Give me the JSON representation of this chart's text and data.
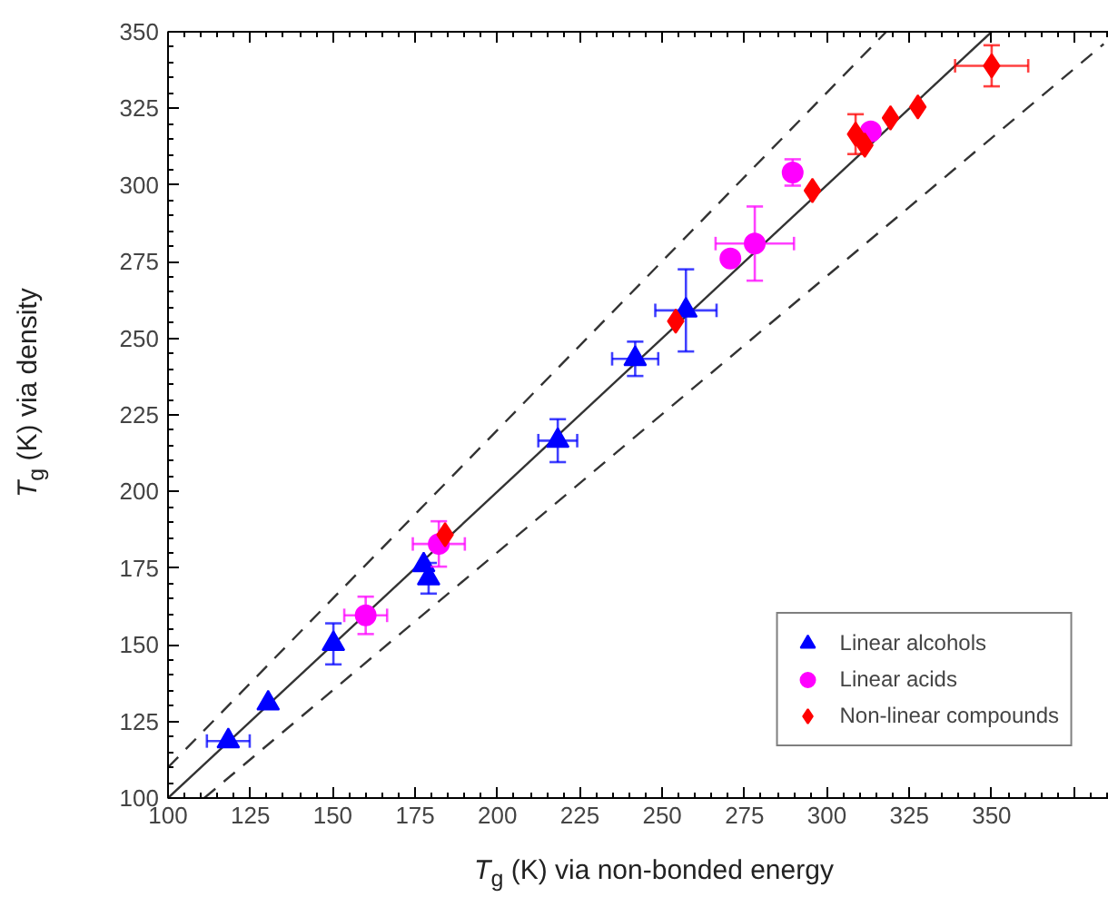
{
  "chart_data": {
    "type": "scatter",
    "xlabel": "T$_{g}$ (K) via non-bonded energy",
    "ylabel": "T$_{g}$ (K) via density",
    "xlim": [
      100,
      390
    ],
    "ylim": [
      100,
      350
    ],
    "xticks": [
      100,
      125,
      150,
      175,
      200,
      225,
      250,
      275,
      300,
      325,
      350,
      {
        "value": 375,
        "label": null
      }
    ],
    "yticks": [
      100,
      125,
      150,
      175,
      200,
      225,
      250,
      275,
      300,
      325,
      350
    ],
    "grid": false,
    "legend": "bottom right",
    "series": [
      {
        "type": "line",
        "x": [
          100,
          350
        ],
        "values": [
          100,
          350
        ],
        "color": "#333333",
        "line_style": "solid",
        "marker": "none"
      },
      {
        "type": "line",
        "x": [
          100,
          318
        ],
        "values": [
          110,
          350
        ],
        "color": "#333333",
        "line_style": "dashed",
        "marker": "none"
      },
      {
        "type": "line",
        "x": [
          111,
          384
        ],
        "values": [
          100,
          346
        ],
        "color": "#333333",
        "line_style": "dashed",
        "marker": "none"
      },
      {
        "name": "Linear alcohols",
        "color": "#0000ff",
        "marker": "triangle",
        "x": [
          118.3,
          130.4,
          150.2,
          177.6,
          179.1,
          218.3,
          241.8,
          257.2
        ],
        "values": [
          118.6,
          130.9,
          150.3,
          176,
          171.7,
          216.6,
          243.3,
          259.1
        ],
        "xerrors": [
          6.5,
          null,
          null,
          null,
          null,
          5.9,
          7,
          9.3
        ],
        "errors": [
          null,
          null,
          6.7,
          null,
          5,
          7,
          5.6,
          13.4
        ]
      },
      {
        "name": "Linear acids",
        "color": "#ff00ff",
        "marker": "circle",
        "x": [
          160,
          182.2,
          270.7,
          278.1,
          289.6,
          313.3
        ],
        "values": [
          159.6,
          182.9,
          276,
          280.9,
          304.1,
          317.5
        ],
        "xerrors": [
          6.5,
          7.9,
          null,
          11.9,
          null,
          null
        ],
        "errors": [
          6.1,
          7.4,
          null,
          12.1,
          4.3,
          null
        ]
      },
      {
        "name": "Non-linear compounds",
        "color": "#ff0000",
        "marker": "diamond",
        "x": [
          184.1,
          254.1,
          295.6,
          308.7,
          311.5,
          319.3,
          327.6,
          350
        ],
        "values": [
          185.9,
          255.6,
          298.2,
          316.6,
          313,
          321.9,
          325.5,
          338.9
        ],
        "xerrors": [
          null,
          null,
          null,
          null,
          null,
          null,
          null,
          11.1
        ],
        "errors": [
          null,
          null,
          null,
          6.5,
          null,
          null,
          null,
          6.7
        ]
      }
    ]
  }
}
